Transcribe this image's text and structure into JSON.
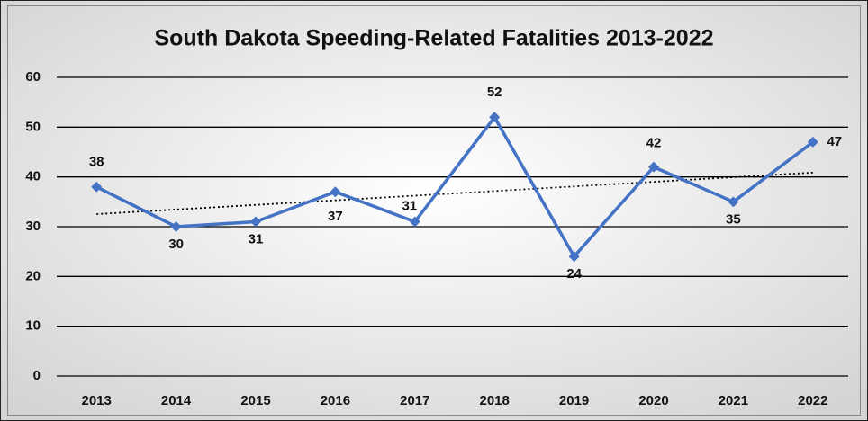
{
  "chart_data": {
    "type": "line",
    "title": "South Dakota Speeding-Related Fatalities 2013-2022",
    "categories": [
      "2013",
      "2014",
      "2015",
      "2016",
      "2017",
      "2018",
      "2019",
      "2020",
      "2021",
      "2022"
    ],
    "series": [
      {
        "name": "Fatalities",
        "color": "#4472c4",
        "values": [
          38,
          30,
          31,
          37,
          31,
          52,
          24,
          42,
          35,
          47
        ]
      }
    ],
    "ylim": [
      0,
      60
    ],
    "yticks": [
      0,
      10,
      20,
      30,
      40,
      50,
      60
    ],
    "grid": true,
    "trendline": "linear",
    "data_labels": true
  }
}
